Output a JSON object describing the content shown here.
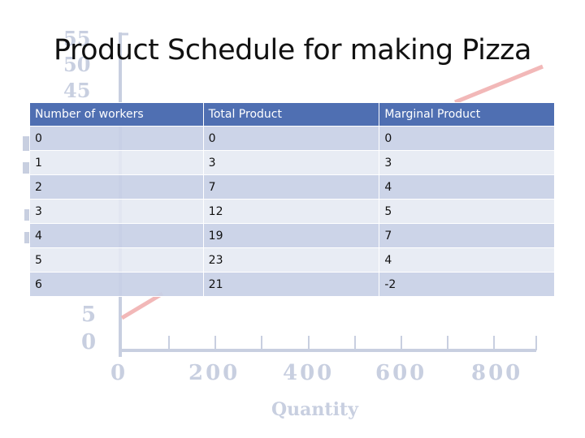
{
  "title": "Product Schedule for making Pizza",
  "table": {
    "headers": [
      "Number of workers",
      "Total Product",
      "Marginal Product"
    ],
    "rows": [
      [
        "0",
        "0",
        "0"
      ],
      [
        "1",
        "3",
        "3"
      ],
      [
        "2",
        "7",
        "4"
      ],
      [
        "3",
        "12",
        "5"
      ],
      [
        "4",
        "19",
        "7"
      ],
      [
        "5",
        "23",
        "4"
      ],
      [
        "6",
        "21",
        "-2"
      ]
    ]
  },
  "background_chart": {
    "y_ticks": [
      "55",
      "50",
      "45",
      "5",
      "0"
    ],
    "x_ticks": [
      "0",
      "200",
      "400",
      "600",
      "800"
    ],
    "x_label": "Quantity",
    "colors": {
      "axis": "#c8cfe0",
      "line": "#f2b8b8",
      "header": "#4f6fb2"
    }
  }
}
